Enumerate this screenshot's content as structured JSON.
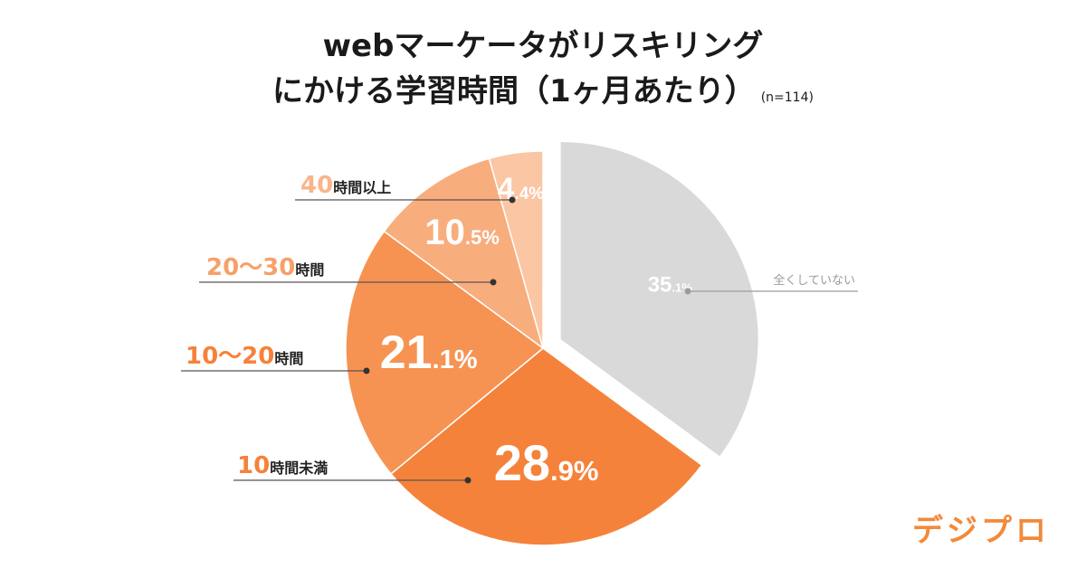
{
  "title": {
    "line1": "webマーケータがリスキリング",
    "line2": "にかける学習時間（1ヶ月あたり）",
    "note": "(n=114)"
  },
  "logo": "デジプロ",
  "chart_data": {
    "type": "pie",
    "title": "webマーケータがリスキリングにかける学習時間（1ヶ月あたり）",
    "slices": [
      {
        "label": "全くしていない",
        "value": 35.1,
        "value_text_main": "35",
        "value_text_dec": ".1%",
        "color": "#d9d9d9",
        "label_color": "#9a9a9a"
      },
      {
        "label": "10時間未満",
        "label_num": "10",
        "label_suffix": "時間未満",
        "value": 28.9,
        "value_text_main": "28",
        "value_text_dec": ".9%",
        "color": "#f5823a",
        "label_color": "#f5823a"
      },
      {
        "label": "10〜20時間",
        "label_num": "10〜20",
        "label_suffix": "時間",
        "value": 21.1,
        "value_text_main": "21",
        "value_text_dec": ".1%",
        "color": "#f69353",
        "label_color": "#f5823a"
      },
      {
        "label": "20〜30時間",
        "label_num": "20〜30",
        "label_suffix": "時間",
        "value": 10.5,
        "value_text_main": "10",
        "value_text_dec": ".5%",
        "color": "#f8ad7d",
        "label_color": "#f7a06a"
      },
      {
        "label": "40時間以上",
        "label_num": "40",
        "label_suffix": "時間以上",
        "value": 4.4,
        "value_text_main": "4",
        "value_text_dec": ".4%",
        "color": "#fbc6a4",
        "label_color": "#f9b58a"
      }
    ],
    "legend": "callouts"
  }
}
